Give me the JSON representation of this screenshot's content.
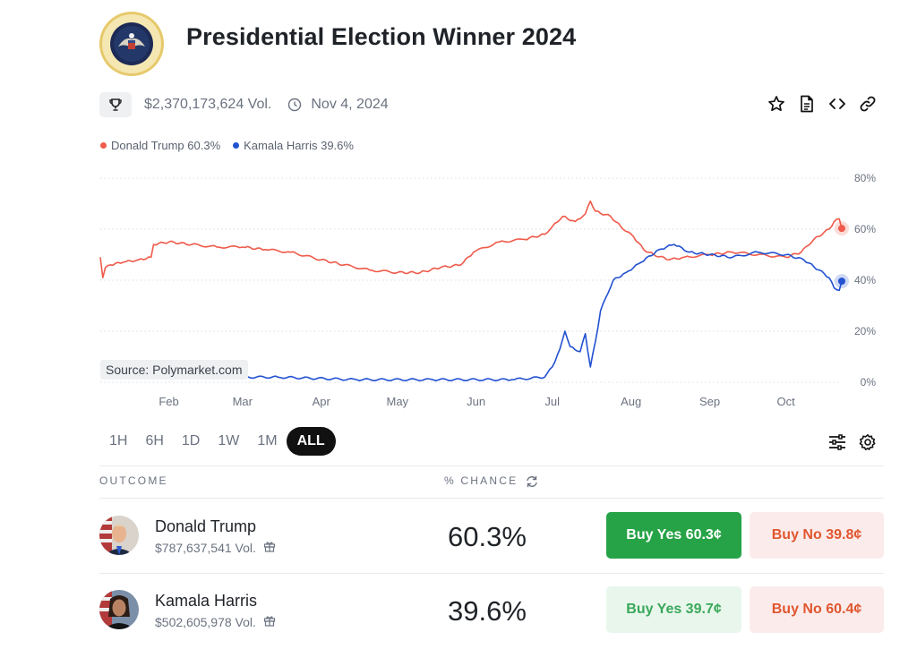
{
  "header": {
    "title": "Presidential Election Winner 2024",
    "volume": "$2,370,173,624 Vol.",
    "end_date": "Nov 4, 2024"
  },
  "legend": [
    {
      "label": "Donald Trump 60.3%",
      "color": "#ef5a4a"
    },
    {
      "label": "Kamala Harris 39.6%",
      "color": "#2251d1"
    }
  ],
  "source_label": "Source: Polymarket.com",
  "icons": {
    "trophy": "trophy-icon",
    "clock": "clock-icon",
    "star": "star-icon",
    "document": "document-icon",
    "embed": "code-icon",
    "link": "link-icon",
    "filters": "sliders-icon",
    "settings": "gear-icon",
    "refresh": "refresh-icon",
    "gift": "gift-icon"
  },
  "ranges": [
    "1H",
    "6H",
    "1D",
    "1W",
    "1M",
    "ALL"
  ],
  "active_range": "ALL",
  "table": {
    "outcome_header": "OUTCOME",
    "chance_header": "% CHANCE",
    "rows": [
      {
        "name": "Donald Trump",
        "volume": "$787,637,541 Vol.",
        "chance": "60.3%",
        "buy_yes": "Buy Yes 60.3¢",
        "buy_no": "Buy No 39.8¢"
      },
      {
        "name": "Kamala Harris",
        "volume": "$502,605,978 Vol.",
        "chance": "39.6%",
        "buy_yes": "Buy Yes 39.7¢",
        "buy_no": "Buy No 60.4¢"
      }
    ]
  },
  "colors": {
    "trump": "#ef5a4a",
    "harris": "#2251d1",
    "buy_yes": "#27a347",
    "buy_no_text": "#e0562f"
  },
  "chart_data": {
    "type": "line",
    "x_tick_labels": [
      "Feb",
      "Mar",
      "Apr",
      "May",
      "Jun",
      "Jul",
      "Aug",
      "Sep",
      "Oct"
    ],
    "y_tick_labels": [
      "0%",
      "20%",
      "40%",
      "60%",
      "80%"
    ],
    "ylim": [
      0,
      80
    ],
    "grid": true,
    "legend_position": "top-left",
    "series": [
      {
        "name": "Donald Trump",
        "color": "#ef5a4a",
        "points": [
          [
            "2024-01-05",
            49
          ],
          [
            "2024-01-06",
            41
          ],
          [
            "2024-01-07",
            45
          ],
          [
            "2024-01-09",
            46
          ],
          [
            "2024-01-14",
            47
          ],
          [
            "2024-01-20",
            48
          ],
          [
            "2024-01-25",
            49
          ],
          [
            "2024-01-26",
            54
          ],
          [
            "2024-02-01",
            55
          ],
          [
            "2024-02-10",
            54
          ],
          [
            "2024-02-20",
            53
          ],
          [
            "2024-03-01",
            53
          ],
          [
            "2024-03-10",
            52
          ],
          [
            "2024-03-20",
            51
          ],
          [
            "2024-04-01",
            48
          ],
          [
            "2024-04-10",
            46
          ],
          [
            "2024-04-20",
            44
          ],
          [
            "2024-05-01",
            43
          ],
          [
            "2024-05-10",
            43
          ],
          [
            "2024-05-18",
            45
          ],
          [
            "2024-05-26",
            46
          ],
          [
            "2024-05-31",
            51
          ],
          [
            "2024-06-10",
            55
          ],
          [
            "2024-06-20",
            56
          ],
          [
            "2024-06-28",
            58
          ],
          [
            "2024-07-01",
            61
          ],
          [
            "2024-07-05",
            65
          ],
          [
            "2024-07-10",
            63
          ],
          [
            "2024-07-14",
            66
          ],
          [
            "2024-07-16",
            71
          ],
          [
            "2024-07-18",
            67
          ],
          [
            "2024-07-24",
            65
          ],
          [
            "2024-07-28",
            61
          ],
          [
            "2024-08-02",
            57
          ],
          [
            "2024-08-06",
            52
          ],
          [
            "2024-08-10",
            50
          ],
          [
            "2024-08-16",
            48
          ],
          [
            "2024-08-22",
            49
          ],
          [
            "2024-09-01",
            50
          ],
          [
            "2024-09-10",
            51
          ],
          [
            "2024-09-20",
            50
          ],
          [
            "2024-10-01",
            49
          ],
          [
            "2024-10-07",
            51
          ],
          [
            "2024-10-12",
            56
          ],
          [
            "2024-10-18",
            60
          ],
          [
            "2024-10-20",
            63
          ],
          [
            "2024-10-22",
            64
          ],
          [
            "2024-10-23",
            60.3
          ]
        ]
      },
      {
        "name": "Kamala Harris",
        "color": "#2251d1",
        "points": [
          [
            "2024-01-05",
            4
          ],
          [
            "2024-01-20",
            3
          ],
          [
            "2024-02-15",
            2
          ],
          [
            "2024-03-15",
            2
          ],
          [
            "2024-04-15",
            1
          ],
          [
            "2024-05-15",
            1
          ],
          [
            "2024-06-15",
            1
          ],
          [
            "2024-06-28",
            2
          ],
          [
            "2024-07-01",
            6
          ],
          [
            "2024-07-04",
            13
          ],
          [
            "2024-07-06",
            20
          ],
          [
            "2024-07-08",
            14
          ],
          [
            "2024-07-12",
            12
          ],
          [
            "2024-07-14",
            19
          ],
          [
            "2024-07-16",
            6
          ],
          [
            "2024-07-18",
            16
          ],
          [
            "2024-07-20",
            28
          ],
          [
            "2024-07-22",
            33
          ],
          [
            "2024-07-25",
            40
          ],
          [
            "2024-07-30",
            43
          ],
          [
            "2024-08-05",
            47
          ],
          [
            "2024-08-12",
            52
          ],
          [
            "2024-08-18",
            54
          ],
          [
            "2024-08-24",
            51
          ],
          [
            "2024-09-01",
            50
          ],
          [
            "2024-09-10",
            49
          ],
          [
            "2024-09-20",
            51
          ],
          [
            "2024-10-01",
            50
          ],
          [
            "2024-10-08",
            48
          ],
          [
            "2024-10-14",
            44
          ],
          [
            "2024-10-18",
            41
          ],
          [
            "2024-10-20",
            37
          ],
          [
            "2024-10-22",
            36
          ],
          [
            "2024-10-23",
            39.6
          ]
        ]
      }
    ]
  }
}
